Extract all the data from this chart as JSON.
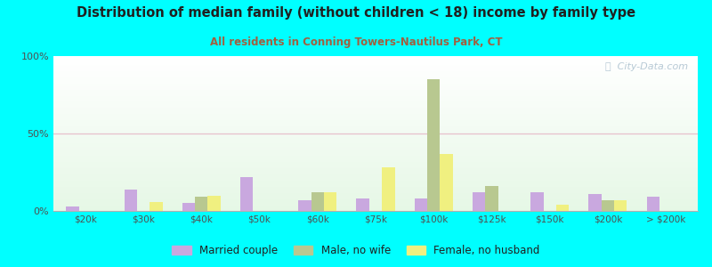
{
  "title": "Distribution of median family (without children < 18) income by family type",
  "subtitle": "All residents in Conning Towers-Nautilus Park, CT",
  "categories": [
    "$20k",
    "$30k",
    "$40k",
    "$50k",
    "$60k",
    "$75k",
    "$100k",
    "$125k",
    "$150k",
    "$200k",
    "> $200k"
  ],
  "married_couple": [
    3,
    14,
    5,
    22,
    7,
    8,
    8,
    12,
    12,
    11,
    9
  ],
  "male_no_wife": [
    0,
    0,
    9,
    0,
    12,
    0,
    85,
    16,
    0,
    7,
    0
  ],
  "female_no_husband": [
    0,
    6,
    10,
    0,
    12,
    28,
    37,
    0,
    4,
    7,
    0
  ],
  "married_color": "#c9a8df",
  "male_color": "#b8c890",
  "female_color": "#f0f080",
  "fig_bg": "#00ffff",
  "grid_color": "#e8c0cc",
  "title_color": "#202020",
  "subtitle_color": "#a06040",
  "tick_color": "#505050",
  "bar_width": 0.22,
  "ylim": [
    0,
    100
  ],
  "yticks": [
    0,
    50,
    100
  ],
  "ytick_labels": [
    "0%",
    "50%",
    "100%"
  ],
  "watermark": "ⓘ  City-Data.com"
}
